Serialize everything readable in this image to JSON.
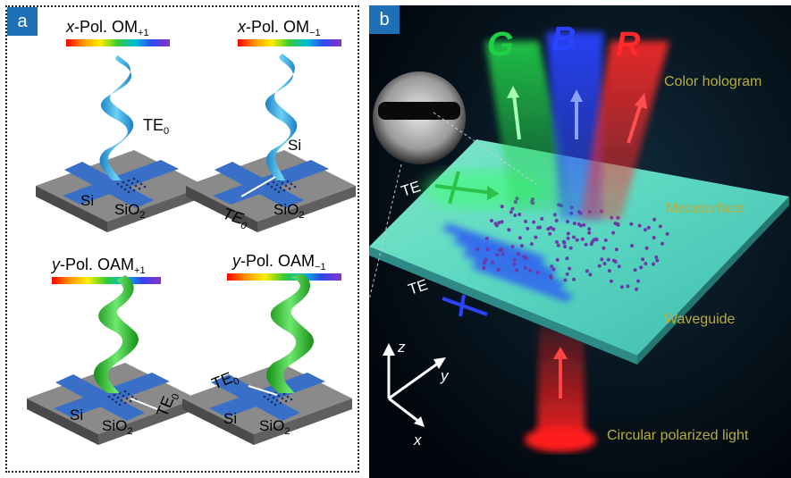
{
  "panel_a": {
    "badge": "a",
    "subpanels": [
      {
        "pol": "x",
        "rest": "-Pol. OM",
        "sub": "+1",
        "input": "TE",
        "input_sub": "0",
        "si": "Si",
        "sio2": "SiO",
        "sio2_sub": "2"
      },
      {
        "pol": "x",
        "rest": "-Pol. OM",
        "sub": "−1",
        "input": "TE",
        "input_sub": "0",
        "si": "Si",
        "sio2": "SiO",
        "sio2_sub": "2"
      },
      {
        "pol": "y",
        "rest": "-Pol. OAM",
        "sub": "+1",
        "input": "TE",
        "input_sub": "0",
        "si": "Si",
        "sio2": "SiO",
        "sio2_sub": "2"
      },
      {
        "pol": "y",
        "rest": "-Pol. OAM",
        "sub": "−1",
        "input": "TE",
        "input_sub": "0",
        "si": "Si",
        "sio2": "SiO",
        "sio2_sub": "2"
      }
    ],
    "colors": {
      "blue_helix": "#2ea3dc",
      "green_helix": "#33b233",
      "waveguide": "#3a6fc8",
      "substrate": "#7c7c7c"
    }
  },
  "panel_b": {
    "badge": "b",
    "beam_letters": [
      "G",
      "B",
      "R"
    ],
    "labels": {
      "color_hologram": "Color hologram",
      "metasurface": "Metasurface",
      "waveguide": "Waveguide",
      "circular_light": "Circular polarized light",
      "te_top": "TE",
      "te_bottom": "TE"
    },
    "axes": {
      "z": "z",
      "y": "y",
      "x": "x"
    },
    "colors": {
      "label": "#b9ad3a",
      "green": "#22d14a",
      "blue": "#2a43ff",
      "red": "#ff2a2a"
    }
  }
}
